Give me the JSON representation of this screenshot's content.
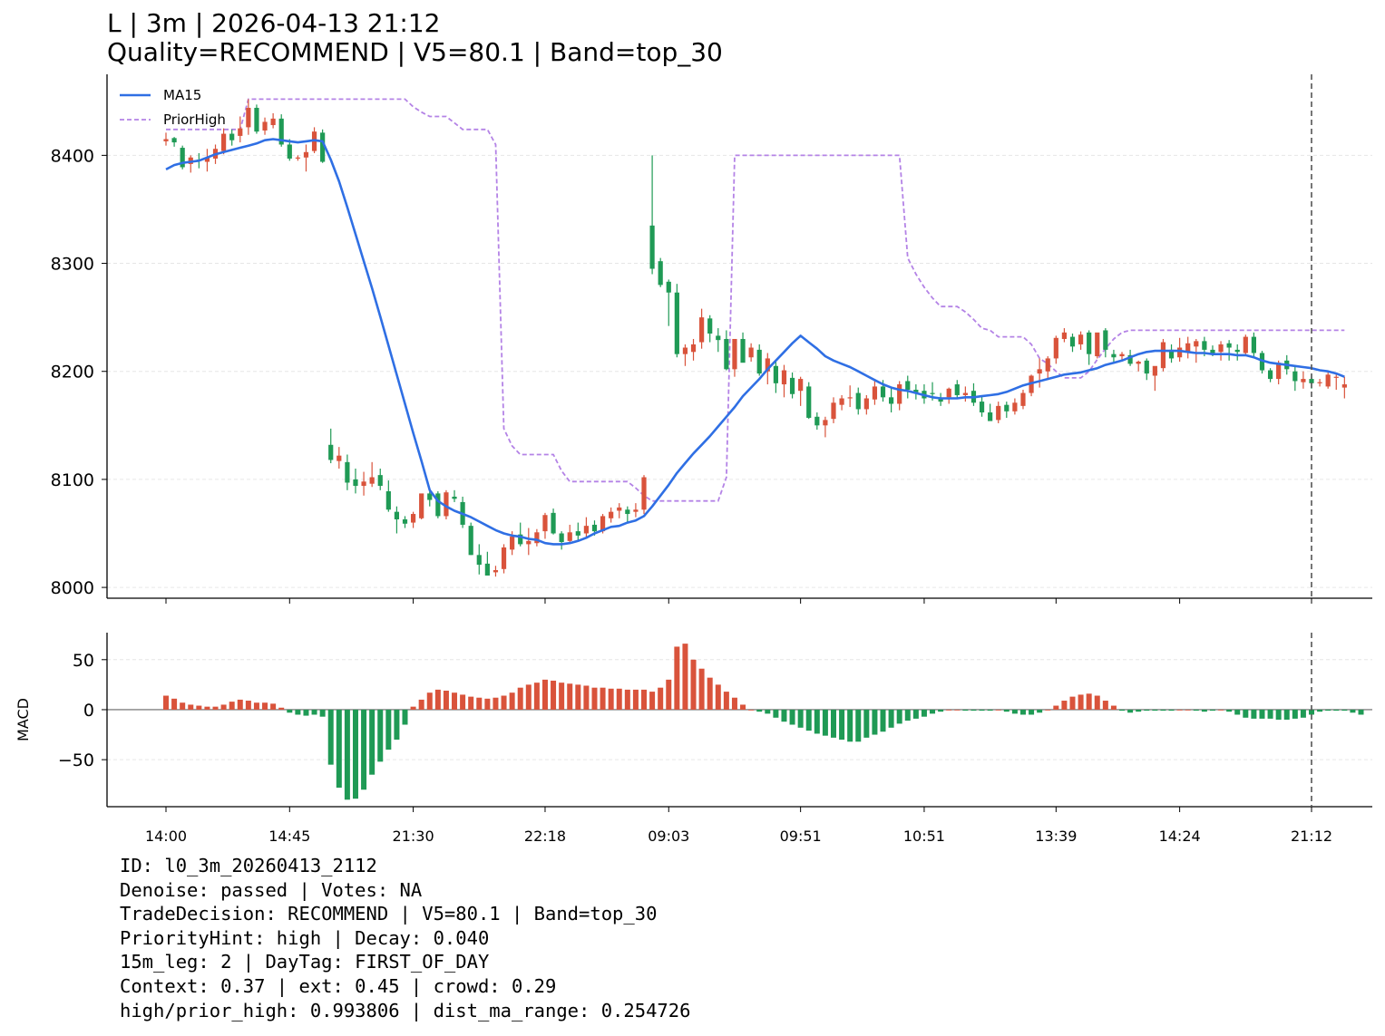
{
  "title": {
    "line1": "L | 3m | 2026-04-13 21:12",
    "line2": "Quality=RECOMMEND | V5=80.1 | Band=top_30"
  },
  "colors": {
    "up": "#d9533b",
    "down": "#1f9a55",
    "ma": "#2f6fe4",
    "prior_high": "#b483e6",
    "grid": "#e6e6e6",
    "zero_line": "#808080",
    "vline": "#555555"
  },
  "info_lines": [
    "ID: l0_3m_20260413_2112",
    "Denoise: passed | Votes: NA",
    "TradeDecision: RECOMMEND | V5=80.1 | Band=top_30",
    "PriorityHint: high | Decay: 0.040",
    "15m_leg: 2 | DayTag: FIRST_OF_DAY",
    "Context: 0.37 | ext: 0.45 | crowd: 0.29",
    "high/prior_high: 0.993806 | dist_ma_range: 0.254726"
  ],
  "chart_data": [
    {
      "type": "candlestick",
      "title": "",
      "xlabel": "",
      "ylabel": "",
      "ylim": [
        7990,
        8475
      ],
      "yticks": [
        8000,
        8100,
        8200,
        8300,
        8400
      ],
      "grid": "y",
      "legend": {
        "placement": "top-left",
        "entries": [
          "MA15",
          "PriorHigh"
        ]
      },
      "x_tick_labels": [
        "14:00",
        "14:45",
        "21:30",
        "22:18",
        "09:03",
        "09:51",
        "10:51",
        "13:39",
        "14:24",
        "21:12"
      ],
      "x_tick_bar_index": [
        0,
        15,
        30,
        46,
        61,
        77,
        92,
        108,
        123,
        139
      ],
      "marker_line_bar_index": 139,
      "candles_ohlc": [
        [
          8413,
          8421,
          8409,
          8415
        ],
        [
          8416,
          8417,
          8408,
          8412
        ],
        [
          8407,
          8409,
          8387,
          8389
        ],
        [
          8392,
          8400,
          8384,
          8398
        ],
        [
          8396,
          8402,
          8388,
          8395
        ],
        [
          8394,
          8406,
          8385,
          8398
        ],
        [
          8397,
          8410,
          8392,
          8406
        ],
        [
          8404,
          8425,
          8401,
          8420
        ],
        [
          8420,
          8424,
          8409,
          8414
        ],
        [
          8418,
          8436,
          8412,
          8425
        ],
        [
          8426,
          8452,
          8419,
          8444
        ],
        [
          8444,
          8447,
          8420,
          8422
        ],
        [
          8423,
          8435,
          8419,
          8431
        ],
        [
          8428,
          8439,
          8425,
          8434
        ],
        [
          8434,
          8438,
          8408,
          8410
        ],
        [
          8410,
          8415,
          8395,
          8397
        ],
        [
          8397,
          8400,
          8395,
          8398
        ],
        [
          8398,
          8410,
          8385,
          8403
        ],
        [
          8404,
          8426,
          8402,
          8422
        ],
        [
          8421,
          8424,
          8393,
          8394
        ],
        [
          8132,
          8147,
          8115,
          8118
        ],
        [
          8117,
          8130,
          8110,
          8122
        ],
        [
          8116,
          8123,
          8090,
          8097
        ],
        [
          8100,
          8110,
          8087,
          8094
        ],
        [
          8094,
          8107,
          8085,
          8098
        ],
        [
          8096,
          8116,
          8093,
          8102
        ],
        [
          8104,
          8110,
          8090,
          8094
        ],
        [
          8089,
          8099,
          8070,
          8072
        ],
        [
          8070,
          8075,
          8050,
          8063
        ],
        [
          8063,
          8066,
          8055,
          8059
        ],
        [
          8060,
          8070,
          8055,
          8068
        ],
        [
          8064,
          8086,
          8063,
          8087
        ],
        [
          8087,
          8090,
          8075,
          8081
        ],
        [
          8087,
          8089,
          8064,
          8066
        ],
        [
          8066,
          8090,
          8063,
          8088
        ],
        [
          8084,
          8090,
          8079,
          8082
        ],
        [
          8079,
          8084,
          8055,
          8058
        ],
        [
          8057,
          8060,
          8030,
          8030
        ],
        [
          8030,
          8040,
          8012,
          8021
        ],
        [
          8022,
          8033,
          8012,
          8011
        ],
        [
          8014,
          8020,
          8010,
          8016
        ],
        [
          8017,
          8040,
          8013,
          8037
        ],
        [
          8035,
          8052,
          8030,
          8047
        ],
        [
          8049,
          8060,
          8038,
          8040
        ],
        [
          8040,
          8055,
          8030,
          8043
        ],
        [
          8041,
          8054,
          8038,
          8051
        ],
        [
          8052,
          8069,
          8045,
          8067
        ],
        [
          8069,
          8073,
          8049,
          8050
        ],
        [
          8050,
          8052,
          8035,
          8042
        ],
        [
          8043,
          8058,
          8041,
          8051
        ],
        [
          8052,
          8060,
          8043,
          8048
        ],
        [
          8050,
          8065,
          8047,
          8057
        ],
        [
          8058,
          8062,
          8048,
          8052
        ],
        [
          8052,
          8068,
          8050,
          8066
        ],
        [
          8064,
          8074,
          8060,
          8070
        ],
        [
          8071,
          8078,
          8064,
          8074
        ],
        [
          8072,
          8075,
          8060,
          8068
        ],
        [
          8070,
          8078,
          8065,
          8072
        ],
        [
          8072,
          8104,
          8068,
          8102
        ],
        [
          8335,
          8400,
          8290,
          8295
        ],
        [
          8302,
          8305,
          8278,
          8280
        ],
        [
          8283,
          8285,
          8242,
          8273
        ],
        [
          8273,
          8281,
          8213,
          8216
        ],
        [
          8216,
          8225,
          8205,
          8222
        ],
        [
          8218,
          8230,
          8210,
          8225
        ],
        [
          8227,
          8258,
          8221,
          8250
        ],
        [
          8249,
          8252,
          8227,
          8235
        ],
        [
          8233,
          8240,
          8218,
          8229
        ],
        [
          8230,
          8238,
          8201,
          8202
        ],
        [
          8202,
          8228,
          8195,
          8230
        ],
        [
          8230,
          8236,
          8216,
          8208
        ],
        [
          8213,
          8226,
          8209,
          8222
        ],
        [
          8220,
          8225,
          8196,
          8198
        ],
        [
          8200,
          8217,
          8188,
          8212
        ],
        [
          8205,
          8209,
          8180,
          8189
        ],
        [
          8188,
          8206,
          8176,
          8201
        ],
        [
          8194,
          8199,
          8175,
          8179
        ],
        [
          8182,
          8195,
          8168,
          8193
        ],
        [
          8186,
          8190,
          8156,
          8157
        ],
        [
          8158,
          8162,
          8146,
          8150
        ],
        [
          8150,
          8158,
          8139,
          8155
        ],
        [
          8156,
          8176,
          8152,
          8171
        ],
        [
          8169,
          8178,
          8164,
          8175
        ],
        [
          8176,
          8187,
          8167,
          8176
        ],
        [
          8180,
          8185,
          8160,
          8165
        ],
        [
          8165,
          8178,
          8160,
          8175
        ],
        [
          8174,
          8191,
          8169,
          8186
        ],
        [
          8186,
          8192,
          8172,
          8176
        ],
        [
          8176,
          8185,
          8162,
          8170
        ],
        [
          8170,
          8191,
          8164,
          8188
        ],
        [
          8191,
          8196,
          8175,
          8183
        ],
        [
          8183,
          8188,
          8174,
          8180
        ],
        [
          8182,
          8188,
          8170,
          8175
        ],
        [
          8180,
          8190,
          8173,
          8179
        ],
        [
          8175,
          8180,
          8168,
          8172
        ],
        [
          8176,
          8185,
          8170,
          8184
        ],
        [
          8188,
          8192,
          8175,
          8178
        ],
        [
          8178,
          8186,
          8172,
          8180
        ],
        [
          8182,
          8189,
          8168,
          8171
        ],
        [
          8172,
          8177,
          8158,
          8162
        ],
        [
          8162,
          8170,
          8155,
          8154
        ],
        [
          8155,
          8172,
          8152,
          8168
        ],
        [
          8169,
          8172,
          8157,
          8163
        ],
        [
          8163,
          8175,
          8160,
          8171
        ],
        [
          8168,
          8183,
          8165,
          8180
        ],
        [
          8180,
          8197,
          8177,
          8196
        ],
        [
          8198,
          8212,
          8185,
          8202
        ],
        [
          8200,
          8214,
          8192,
          8212
        ],
        [
          8212,
          8233,
          8207,
          8231
        ],
        [
          8230,
          8240,
          8227,
          8236
        ],
        [
          8232,
          8235,
          8218,
          8223
        ],
        [
          8225,
          8237,
          8220,
          8234
        ],
        [
          8236,
          8238,
          8206,
          8216
        ],
        [
          8214,
          8225,
          8212,
          8236
        ],
        [
          8238,
          8240,
          8213,
          8220
        ],
        [
          8216,
          8220,
          8208,
          8213
        ],
        [
          8214,
          8218,
          8210,
          8216
        ],
        [
          8215,
          8220,
          8205,
          8207
        ],
        [
          8207,
          8210,
          8200,
          8209
        ],
        [
          8210,
          8212,
          8192,
          8198
        ],
        [
          8196,
          8200,
          8182,
          8205
        ],
        [
          8203,
          8230,
          8200,
          8227
        ],
        [
          8220,
          8225,
          8208,
          8212
        ],
        [
          8213,
          8231,
          8209,
          8222
        ],
        [
          8218,
          8232,
          8212,
          8226
        ],
        [
          8223,
          8230,
          8208,
          8228
        ],
        [
          8228,
          8232,
          8214,
          8220
        ],
        [
          8220,
          8224,
          8214,
          8216
        ],
        [
          8218,
          8228,
          8210,
          8225
        ],
        [
          8226,
          8229,
          8210,
          8222
        ],
        [
          8220,
          8225,
          8210,
          8218
        ],
        [
          8217,
          8234,
          8214,
          8232
        ],
        [
          8232,
          8236,
          8212,
          8217
        ],
        [
          8217,
          8219,
          8198,
          8201
        ],
        [
          8201,
          8203,
          8190,
          8193
        ],
        [
          8193,
          8210,
          8188,
          8208
        ],
        [
          8210,
          8215,
          8197,
          8202
        ],
        [
          8200,
          8206,
          8182,
          8191
        ],
        [
          8190,
          8200,
          8184,
          8193
        ],
        [
          8193,
          8197,
          8184,
          8189
        ],
        [
          8189,
          8193,
          8186,
          8190
        ],
        [
          8186,
          8199,
          8184,
          8197
        ],
        [
          8195,
          8198,
          8183,
          8195
        ],
        [
          8185,
          8195,
          8175,
          8188
        ]
      ],
      "ma15": [
        8387,
        8391,
        8393,
        8394,
        8395,
        8398,
        8401,
        8403,
        8405,
        8407,
        8409,
        8411,
        8414,
        8415,
        8414,
        8413,
        8412,
        8413,
        8414,
        8413,
        8396,
        8376,
        8352,
        8327,
        8302,
        8277,
        8251,
        8224,
        8197,
        8170,
        8143,
        8117,
        8090,
        8080,
        8075,
        8071,
        8068,
        8065,
        8061,
        8057,
        8053,
        8050,
        8048,
        8047,
        8045,
        8044,
        8041,
        8040,
        8040,
        8041,
        8043,
        8046,
        8050,
        8053,
        8056,
        8057,
        8060,
        8062,
        8066,
        8075,
        8085,
        8095,
        8106,
        8115,
        8124,
        8132,
        8140,
        8149,
        8158,
        8167,
        8177,
        8185,
        8193,
        8202,
        8210,
        8218,
        8226,
        8233,
        8227,
        8221,
        8214,
        8210,
        8207,
        8204,
        8200,
        8196,
        8192,
        8188,
        8185,
        8183,
        8182,
        8180,
        8178,
        8176,
        8175,
        8175,
        8175,
        8176,
        8176,
        8177,
        8178,
        8179,
        8181,
        8184,
        8187,
        8189,
        8191,
        8193,
        8195,
        8197,
        8198,
        8199,
        8201,
        8203,
        8206,
        8208,
        8210,
        8213,
        8216,
        8218,
        8219,
        8219,
        8219,
        8219,
        8218,
        8217,
        8217,
        8216,
        8216,
        8216,
        8215,
        8215,
        8213,
        8210,
        8208,
        8207,
        8206,
        8205,
        8204,
        8203,
        8201,
        8200,
        8198,
        8195
      ],
      "prior_high": [
        8424,
        8424,
        8424,
        8424,
        8424,
        8424,
        8424,
        8424,
        8424,
        8424,
        8452,
        8452,
        8452,
        8452,
        8452,
        8452,
        8452,
        8452,
        8452,
        8452,
        8452,
        8452,
        8452,
        8452,
        8452,
        8452,
        8452,
        8452,
        8452,
        8452,
        8445,
        8440,
        8436,
        8436,
        8436,
        8430,
        8424,
        8424,
        8424,
        8424,
        8410,
        8147,
        8131,
        8123,
        8123,
        8123,
        8123,
        8123,
        8108,
        8098,
        8098,
        8098,
        8098,
        8098,
        8098,
        8098,
        8098,
        8092,
        8085,
        8080,
        8080,
        8080,
        8080,
        8080,
        8080,
        8080,
        8080,
        8080,
        8102,
        8400,
        8400,
        8400,
        8400,
        8400,
        8400,
        8400,
        8400,
        8400,
        8400,
        8400,
        8400,
        8400,
        8400,
        8400,
        8400,
        8400,
        8400,
        8400,
        8400,
        8400,
        8305,
        8290,
        8278,
        8268,
        8260,
        8260,
        8260,
        8255,
        8248,
        8240,
        8238,
        8232,
        8232,
        8232,
        8232,
        8225,
        8212,
        8207,
        8200,
        8194,
        8194,
        8194,
        8200,
        8211,
        8221,
        8230,
        8236,
        8238,
        8238,
        8238,
        8238,
        8238,
        8238,
        8238,
        8238,
        8238,
        8238,
        8238,
        8238,
        8238,
        8238,
        8238,
        8238,
        8238,
        8238,
        8238,
        8238,
        8238,
        8238,
        8238,
        8238,
        8238,
        8238,
        8238
      ]
    },
    {
      "type": "bar",
      "title": "",
      "xlabel": "",
      "ylabel": "MACD",
      "ylim": [
        -97,
        77
      ],
      "yticks": [
        -50,
        0,
        50
      ],
      "grid": "y",
      "values": [
        14,
        11,
        7,
        5,
        4,
        3,
        3,
        5,
        8,
        10,
        9,
        7,
        7,
        6,
        2,
        -3,
        -5,
        -6,
        -5,
        -7,
        -55,
        -78,
        -90,
        -89,
        -80,
        -65,
        -52,
        -40,
        -30,
        -15,
        3,
        10,
        17,
        20,
        19,
        17,
        15,
        13,
        12,
        11,
        12,
        14,
        17,
        22,
        25,
        27,
        30,
        29,
        27,
        26,
        25,
        24,
        22,
        22,
        21,
        21,
        20,
        20,
        20,
        18,
        22,
        30,
        63,
        66,
        50,
        41,
        32,
        25,
        18,
        12,
        5,
        0,
        -2,
        -4,
        -8,
        -12,
        -15,
        -18,
        -21,
        -24,
        -26,
        -28,
        -30,
        -32,
        -32,
        -28,
        -25,
        -22,
        -18,
        -14,
        -11,
        -9,
        -7,
        -4,
        -2,
        0,
        0,
        -1,
        -1,
        -1,
        -1,
        0,
        -2,
        -4,
        -5,
        -5,
        -3,
        0,
        4,
        9,
        13,
        15,
        16,
        14,
        9,
        4,
        -1,
        -3,
        -2,
        -1,
        -1,
        -1,
        -1,
        0,
        0,
        -1,
        -2,
        -1,
        0,
        -2,
        -5,
        -8,
        -9,
        -9,
        -9,
        -10,
        -10,
        -9,
        -8,
        -5,
        -2,
        -1,
        -1,
        -1,
        -3,
        -5
      ]
    }
  ]
}
